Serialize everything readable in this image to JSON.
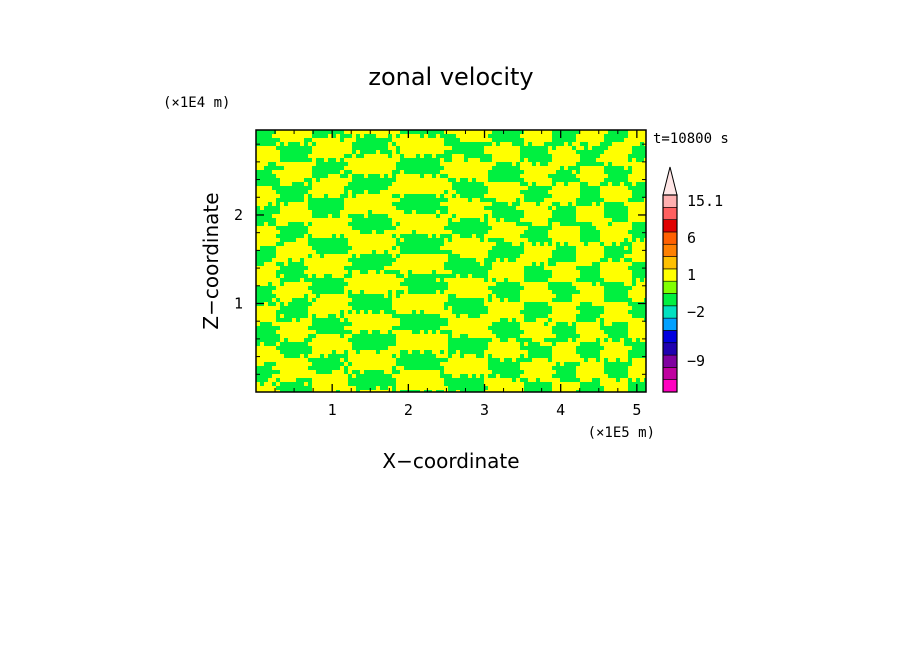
{
  "chart_data": {
    "type": "heatmap",
    "title": "zonal velocity",
    "xlabel": "X−coordinate",
    "ylabel": "Z−coordinate",
    "x_unit": "(×1E5 m)",
    "y_unit": "(×1E4 m)",
    "time_label": "t=10800 s",
    "xlim": [
      0,
      5.12
    ],
    "ylim": [
      0,
      2.96
    ],
    "x_ticks": [
      "1",
      "2",
      "3",
      "4",
      "5"
    ],
    "x_tick_values": [
      1,
      2,
      3,
      4,
      5
    ],
    "y_ticks": [
      "1",
      "2"
    ],
    "y_tick_values": [
      1,
      2
    ],
    "field_colors": [
      "#ffff00",
      "#00f040"
    ],
    "colorbar": {
      "levels": [
        {
          "color": "#ff00c0"
        },
        {
          "color": "#c000a0"
        },
        {
          "color": "#8000a0"
        },
        {
          "color": "#2000b0"
        },
        {
          "color": "#0000e0"
        },
        {
          "color": "#00a0ff"
        },
        {
          "color": "#00e0c0"
        },
        {
          "color": "#00f040"
        },
        {
          "color": "#80ff00"
        },
        {
          "color": "#ffff00"
        },
        {
          "color": "#ffc000"
        },
        {
          "color": "#ff8000"
        },
        {
          "color": "#ff6000"
        },
        {
          "color": "#e00000"
        },
        {
          "color": "#ff6060"
        },
        {
          "color": "#ffb0b0"
        }
      ],
      "tick_labels": [
        {
          "text": "15.1",
          "at_level": 15.5
        },
        {
          "text": "6",
          "at_level": 12.5
        },
        {
          "text": "1",
          "at_level": 9.5
        },
        {
          "text": "−2",
          "at_level": 6.5
        },
        {
          "text": "−9",
          "at_level": 2.5
        }
      ],
      "extension_color": "#ffe6e6"
    }
  }
}
